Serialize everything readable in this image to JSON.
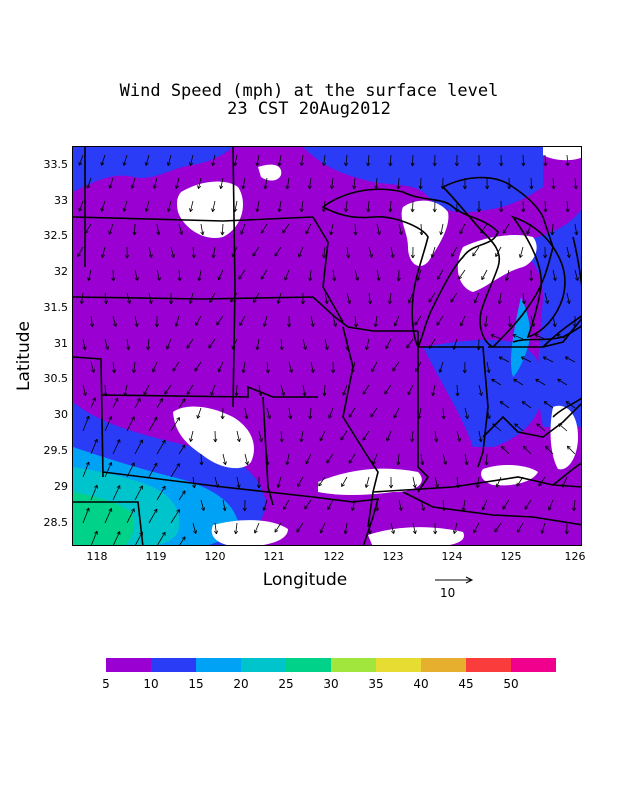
{
  "title": {
    "line1": "Wind Speed (mph) at the surface level",
    "line2": "23 CST 20Aug2012"
  },
  "axes": {
    "xlabel": "Longitude",
    "ylabel": "Latitude",
    "xticks": [
      "118",
      "119",
      "120",
      "121",
      "122",
      "123",
      "124",
      "125",
      "126"
    ],
    "yticks": [
      "33.5",
      "33",
      "32.5",
      "32",
      "31.5",
      "31",
      "30.5",
      "30",
      "29.5",
      "29",
      "28.5"
    ]
  },
  "vector_scale": {
    "label": "10"
  },
  "colorbar": {
    "colors": [
      "#9a00d2",
      "#2a3cf5",
      "#00a2f5",
      "#00c4cc",
      "#00d28a",
      "#a0e63c",
      "#e6dc32",
      "#e6af2d",
      "#fa3c3c",
      "#f0008c"
    ],
    "labels": [
      "5",
      "10",
      "15",
      "20",
      "25",
      "30",
      "35",
      "40",
      "45",
      "50"
    ]
  },
  "colors": {
    "below_5": "#ffffff",
    "5_to_10": "#9a00d2",
    "10_to_15": "#2a3cf5",
    "15_to_20": "#00a2f5",
    "20_to_25": "#00c4cc",
    "25_to_30": "#00d28a"
  }
}
